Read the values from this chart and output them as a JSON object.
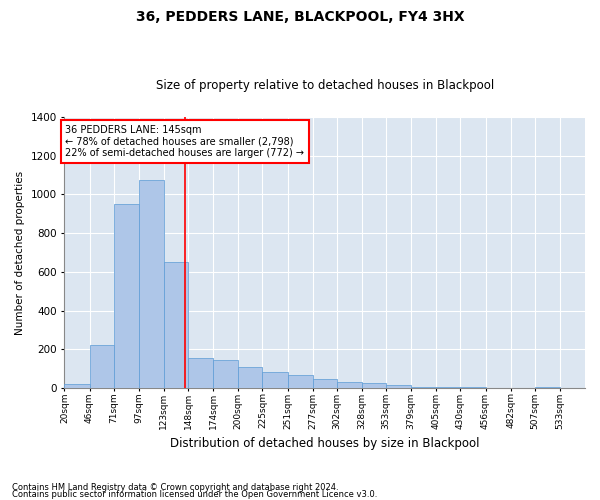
{
  "title": "36, PEDDERS LANE, BLACKPOOL, FY4 3HX",
  "subtitle": "Size of property relative to detached houses in Blackpool",
  "xlabel": "Distribution of detached houses by size in Blackpool",
  "ylabel": "Number of detached properties",
  "footnote1": "Contains HM Land Registry data © Crown copyright and database right 2024.",
  "footnote2": "Contains public sector information licensed under the Open Government Licence v3.0.",
  "annotation_line1": "36 PEDDERS LANE: 145sqm",
  "annotation_line2": "← 78% of detached houses are smaller (2,798)",
  "annotation_line3": "22% of semi-detached houses are larger (772) →",
  "property_size": 145,
  "bar_color": "#aec6e8",
  "bar_edge_color": "#5b9bd5",
  "marker_color": "red",
  "background_color": "#dce6f1",
  "categories": [
    "20sqm",
    "46sqm",
    "71sqm",
    "97sqm",
    "123sqm",
    "148sqm",
    "174sqm",
    "200sqm",
    "225sqm",
    "251sqm",
    "277sqm",
    "302sqm",
    "328sqm",
    "353sqm",
    "379sqm",
    "405sqm",
    "430sqm",
    "456sqm",
    "482sqm",
    "507sqm",
    "533sqm"
  ],
  "values": [
    20,
    220,
    950,
    1075,
    650,
    155,
    145,
    110,
    85,
    70,
    45,
    30,
    25,
    18,
    8,
    5,
    4,
    2,
    1,
    8,
    1
  ],
  "bin_edges": [
    20,
    46,
    71,
    97,
    123,
    148,
    174,
    200,
    225,
    251,
    277,
    302,
    328,
    353,
    379,
    405,
    430,
    456,
    482,
    507,
    533,
    559
  ],
  "ylim": [
    0,
    1400
  ],
  "yticks": [
    0,
    200,
    400,
    600,
    800,
    1000,
    1200,
    1400
  ]
}
